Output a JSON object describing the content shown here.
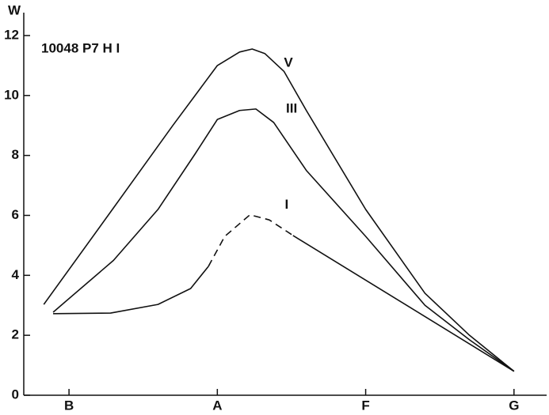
{
  "chart_data": {
    "type": "line",
    "title": "10048  P7   H I",
    "y_label": "W",
    "xlim": [
      -0.305,
      3.22
    ],
    "ylim": [
      0,
      12.5
    ],
    "xticks": [
      {
        "value": 0,
        "label": "B"
      },
      {
        "value": 1,
        "label": "A"
      },
      {
        "value": 2,
        "label": "F"
      },
      {
        "value": 3,
        "label": "G"
      }
    ],
    "yticks": [
      0,
      2,
      4,
      6,
      8,
      10,
      12
    ],
    "color": "#111111",
    "series": [
      {
        "name": "V",
        "color": "#111111",
        "x": [
          -0.17,
          0.3,
          0.7,
          1.0,
          1.15,
          1.235,
          1.32,
          1.45,
          1.6,
          2.0,
          2.4,
          2.7,
          3.0
        ],
        "values": [
          3.03,
          6.25,
          9.0,
          11.0,
          11.45,
          11.55,
          11.4,
          10.8,
          9.5,
          6.2,
          3.4,
          2.0,
          0.8
        ]
      },
      {
        "name": "III",
        "color": "#111111",
        "x": [
          -0.107,
          0.3,
          0.6,
          0.85,
          1.0,
          1.15,
          1.26,
          1.38,
          1.6,
          2.0,
          2.4,
          2.7,
          3.0
        ],
        "values": [
          2.77,
          4.5,
          6.2,
          8.05,
          9.2,
          9.5,
          9.55,
          9.1,
          7.5,
          5.3,
          3.0,
          1.85,
          0.8
        ]
      },
      {
        "name": "I",
        "color": "#111111",
        "dashed_from": 4,
        "dashed_to": 8,
        "x": [
          -0.107,
          0.28,
          0.6,
          0.82,
          0.94,
          1.05,
          1.22,
          1.35,
          1.51,
          3.0
        ],
        "values": [
          2.72,
          2.74,
          3.03,
          3.56,
          4.3,
          5.3,
          6.02,
          5.85,
          5.33,
          0.8
        ]
      }
    ]
  }
}
